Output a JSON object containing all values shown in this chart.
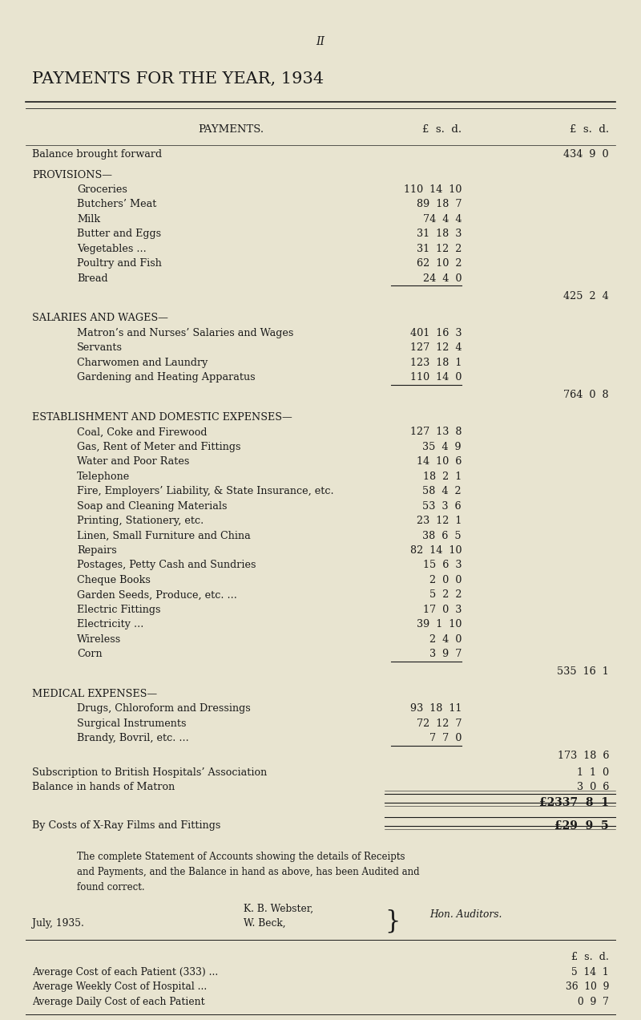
{
  "bg_color": "#e8e4d0",
  "text_color": "#1a1a1a",
  "page_number": "II",
  "title": "PAYMENTS FOR THE YEAR, 1934",
  "header_cols": [
    "PAYMENTS.",
    "£  s.  d.",
    "£  s.  d."
  ],
  "rows": [
    {
      "indent": 0,
      "label": "Balance brought forward",
      "dots": "...",
      "col1": "",
      "col2": "434  9  0",
      "type": "normal"
    },
    {
      "indent": 0,
      "label": "PROVISIONS—",
      "dots": "",
      "col1": "",
      "col2": "",
      "type": "section"
    },
    {
      "indent": 1,
      "label": "Groceries",
      "dots": "...",
      "col1": "110  14  10",
      "col2": "",
      "type": "normal"
    },
    {
      "indent": 1,
      "label": "Butchers’ Meat",
      "dots": "...",
      "col1": "89  18  7",
      "col2": "",
      "type": "normal"
    },
    {
      "indent": 1,
      "label": "Milk",
      "dots": "...",
      "col1": "74  4  4",
      "col2": "",
      "type": "normal"
    },
    {
      "indent": 1,
      "label": "Butter and Eggs",
      "dots": "...",
      "col1": "31  18  3",
      "col2": "",
      "type": "normal"
    },
    {
      "indent": 1,
      "label": "Vegetables ...",
      "dots": "",
      "col1": "31  12  2",
      "col2": "",
      "type": "normal"
    },
    {
      "indent": 1,
      "label": "Poultry and Fish",
      "dots": "...",
      "col1": "62  10  2",
      "col2": "",
      "type": "normal"
    },
    {
      "indent": 1,
      "label": "Bread",
      "dots": "...",
      "col1": "24  4  0",
      "col2": "",
      "type": "subtotal_above"
    },
    {
      "indent": 0,
      "label": "",
      "dots": "",
      "col1": "",
      "col2": "425  2  4",
      "type": "subtotal"
    },
    {
      "indent": 0,
      "label": "SALARIES AND WAGES—",
      "dots": "",
      "col1": "",
      "col2": "",
      "type": "section"
    },
    {
      "indent": 1,
      "label": "Matron’s and Nurses’ Salaries and Wages",
      "dots": "...",
      "col1": "401  16  3",
      "col2": "",
      "type": "normal"
    },
    {
      "indent": 1,
      "label": "Servants",
      "dots": "...",
      "col1": "127  12  4",
      "col2": "",
      "type": "normal"
    },
    {
      "indent": 1,
      "label": "Charwomen and Laundry",
      "dots": "...",
      "col1": "123  18  1",
      "col2": "",
      "type": "normal"
    },
    {
      "indent": 1,
      "label": "Gardening and Heating Apparatus",
      "dots": "...",
      "col1": "110  14  0",
      "col2": "",
      "type": "subtotal_above"
    },
    {
      "indent": 0,
      "label": "",
      "dots": "",
      "col1": "",
      "col2": "764  0  8",
      "type": "subtotal"
    },
    {
      "indent": 0,
      "label": "ESTABLISHMENT AND DOMESTIC EXPENSES—",
      "dots": "",
      "col1": "",
      "col2": "",
      "type": "section"
    },
    {
      "indent": 1,
      "label": "Coal, Coke and Firewood",
      "dots": "...",
      "col1": "127  13  8",
      "col2": "",
      "type": "normal"
    },
    {
      "indent": 1,
      "label": "Gas, Rent of Meter and Fittings",
      "dots": "...",
      "col1": "35  4  9",
      "col2": "",
      "type": "normal"
    },
    {
      "indent": 1,
      "label": "Water and Poor Rates",
      "dots": "...",
      "col1": "14  10  6",
      "col2": "",
      "type": "normal"
    },
    {
      "indent": 1,
      "label": "Telephone",
      "dots": "...",
      "col1": "18  2  1",
      "col2": "",
      "type": "normal"
    },
    {
      "indent": 1,
      "label": "Fire, Employers’ Liability, & State Insurance, etc.",
      "dots": "",
      "col1": "58  4  2",
      "col2": "",
      "type": "normal"
    },
    {
      "indent": 1,
      "label": "Soap and Cleaning Materials",
      "dots": "...",
      "col1": "53  3  6",
      "col2": "",
      "type": "normal"
    },
    {
      "indent": 1,
      "label": "Printing, Stationery, etc.",
      "dots": "...",
      "col1": "23  12  1",
      "col2": "",
      "type": "normal"
    },
    {
      "indent": 1,
      "label": "Linen, Small Furniture and China",
      "dots": "...",
      "col1": "38  6  5",
      "col2": "",
      "type": "normal"
    },
    {
      "indent": 1,
      "label": "Repairs",
      "dots": "...",
      "col1": "82  14  10",
      "col2": "",
      "type": "normal"
    },
    {
      "indent": 1,
      "label": "Postages, Petty Cash and Sundries",
      "dots": "...",
      "col1": "15  6  3",
      "col2": "",
      "type": "normal"
    },
    {
      "indent": 1,
      "label": "Cheque Books",
      "dots": "...",
      "col1": "2  0  0",
      "col2": "",
      "type": "normal"
    },
    {
      "indent": 1,
      "label": "Garden Seeds, Produce, etc. ...",
      "dots": "",
      "col1": "5  2  2",
      "col2": "",
      "type": "normal"
    },
    {
      "indent": 1,
      "label": "Electric Fittings",
      "dots": "...",
      "col1": "17  0  3",
      "col2": "",
      "type": "normal"
    },
    {
      "indent": 1,
      "label": "Electricity ...",
      "dots": "",
      "col1": "39  1  10",
      "col2": "",
      "type": "normal"
    },
    {
      "indent": 1,
      "label": "Wireless",
      "dots": "...",
      "col1": "2  4  0",
      "col2": "",
      "type": "normal"
    },
    {
      "indent": 1,
      "label": "Corn",
      "dots": "...",
      "col1": "3  9  7",
      "col2": "",
      "type": "subtotal_above"
    },
    {
      "indent": 0,
      "label": "",
      "dots": "",
      "col1": "",
      "col2": "535  16  1",
      "type": "subtotal"
    },
    {
      "indent": 0,
      "label": "MEDICAL EXPENSES—",
      "dots": "",
      "col1": "",
      "col2": "",
      "type": "section"
    },
    {
      "indent": 1,
      "label": "Drugs, Chloroform and Dressings",
      "dots": "...",
      "col1": "93  18  11",
      "col2": "",
      "type": "normal"
    },
    {
      "indent": 1,
      "label": "Surgical Instruments",
      "dots": "...",
      "col1": "72  12  7",
      "col2": "",
      "type": "normal"
    },
    {
      "indent": 1,
      "label": "Brandy, Bovril, etc. ...",
      "dots": "",
      "col1": "7  7  0",
      "col2": "",
      "type": "subtotal_above"
    },
    {
      "indent": 0,
      "label": "",
      "dots": "",
      "col1": "",
      "col2": "173  18  6",
      "type": "subtotal"
    },
    {
      "indent": 0,
      "label": "Subscription to British Hospitals’ Association",
      "dots": "...",
      "col1": "",
      "col2": "1  1  0",
      "type": "normal"
    },
    {
      "indent": 0,
      "label": "Balance in hands of Matron",
      "dots": "...",
      "col1": "",
      "col2": "3  0  6",
      "type": "normal"
    },
    {
      "indent": 0,
      "label": "",
      "dots": "",
      "col1": "",
      "col2": "£2337  8  1",
      "type": "total"
    },
    {
      "indent": 0,
      "label": "By Costs of X-Ray Films and Fittings",
      "dots": "...",
      "col1": "",
      "col2": "£29  9  5",
      "type": "xray"
    }
  ],
  "audit_text": "The complete Statement of Accounts showing the details of Receipts\nand Payments, and the Balance in hand as above, has been Audited and\nfound correct.",
  "auditors_left": "K. B. Webster,\nW. Beck,",
  "auditors_right": "Hon. Auditors.",
  "averages": [
    {
      "label": "Average Cost of each Patient (333) ...",
      "value": "5  14  1"
    },
    {
      "label": "Average Weekly Cost of Hospital ...",
      "value": "36  10  9"
    },
    {
      "label": "Average Daily Cost of each Patient",
      "value": "0  9  7"
    }
  ],
  "date": "July, 1935."
}
